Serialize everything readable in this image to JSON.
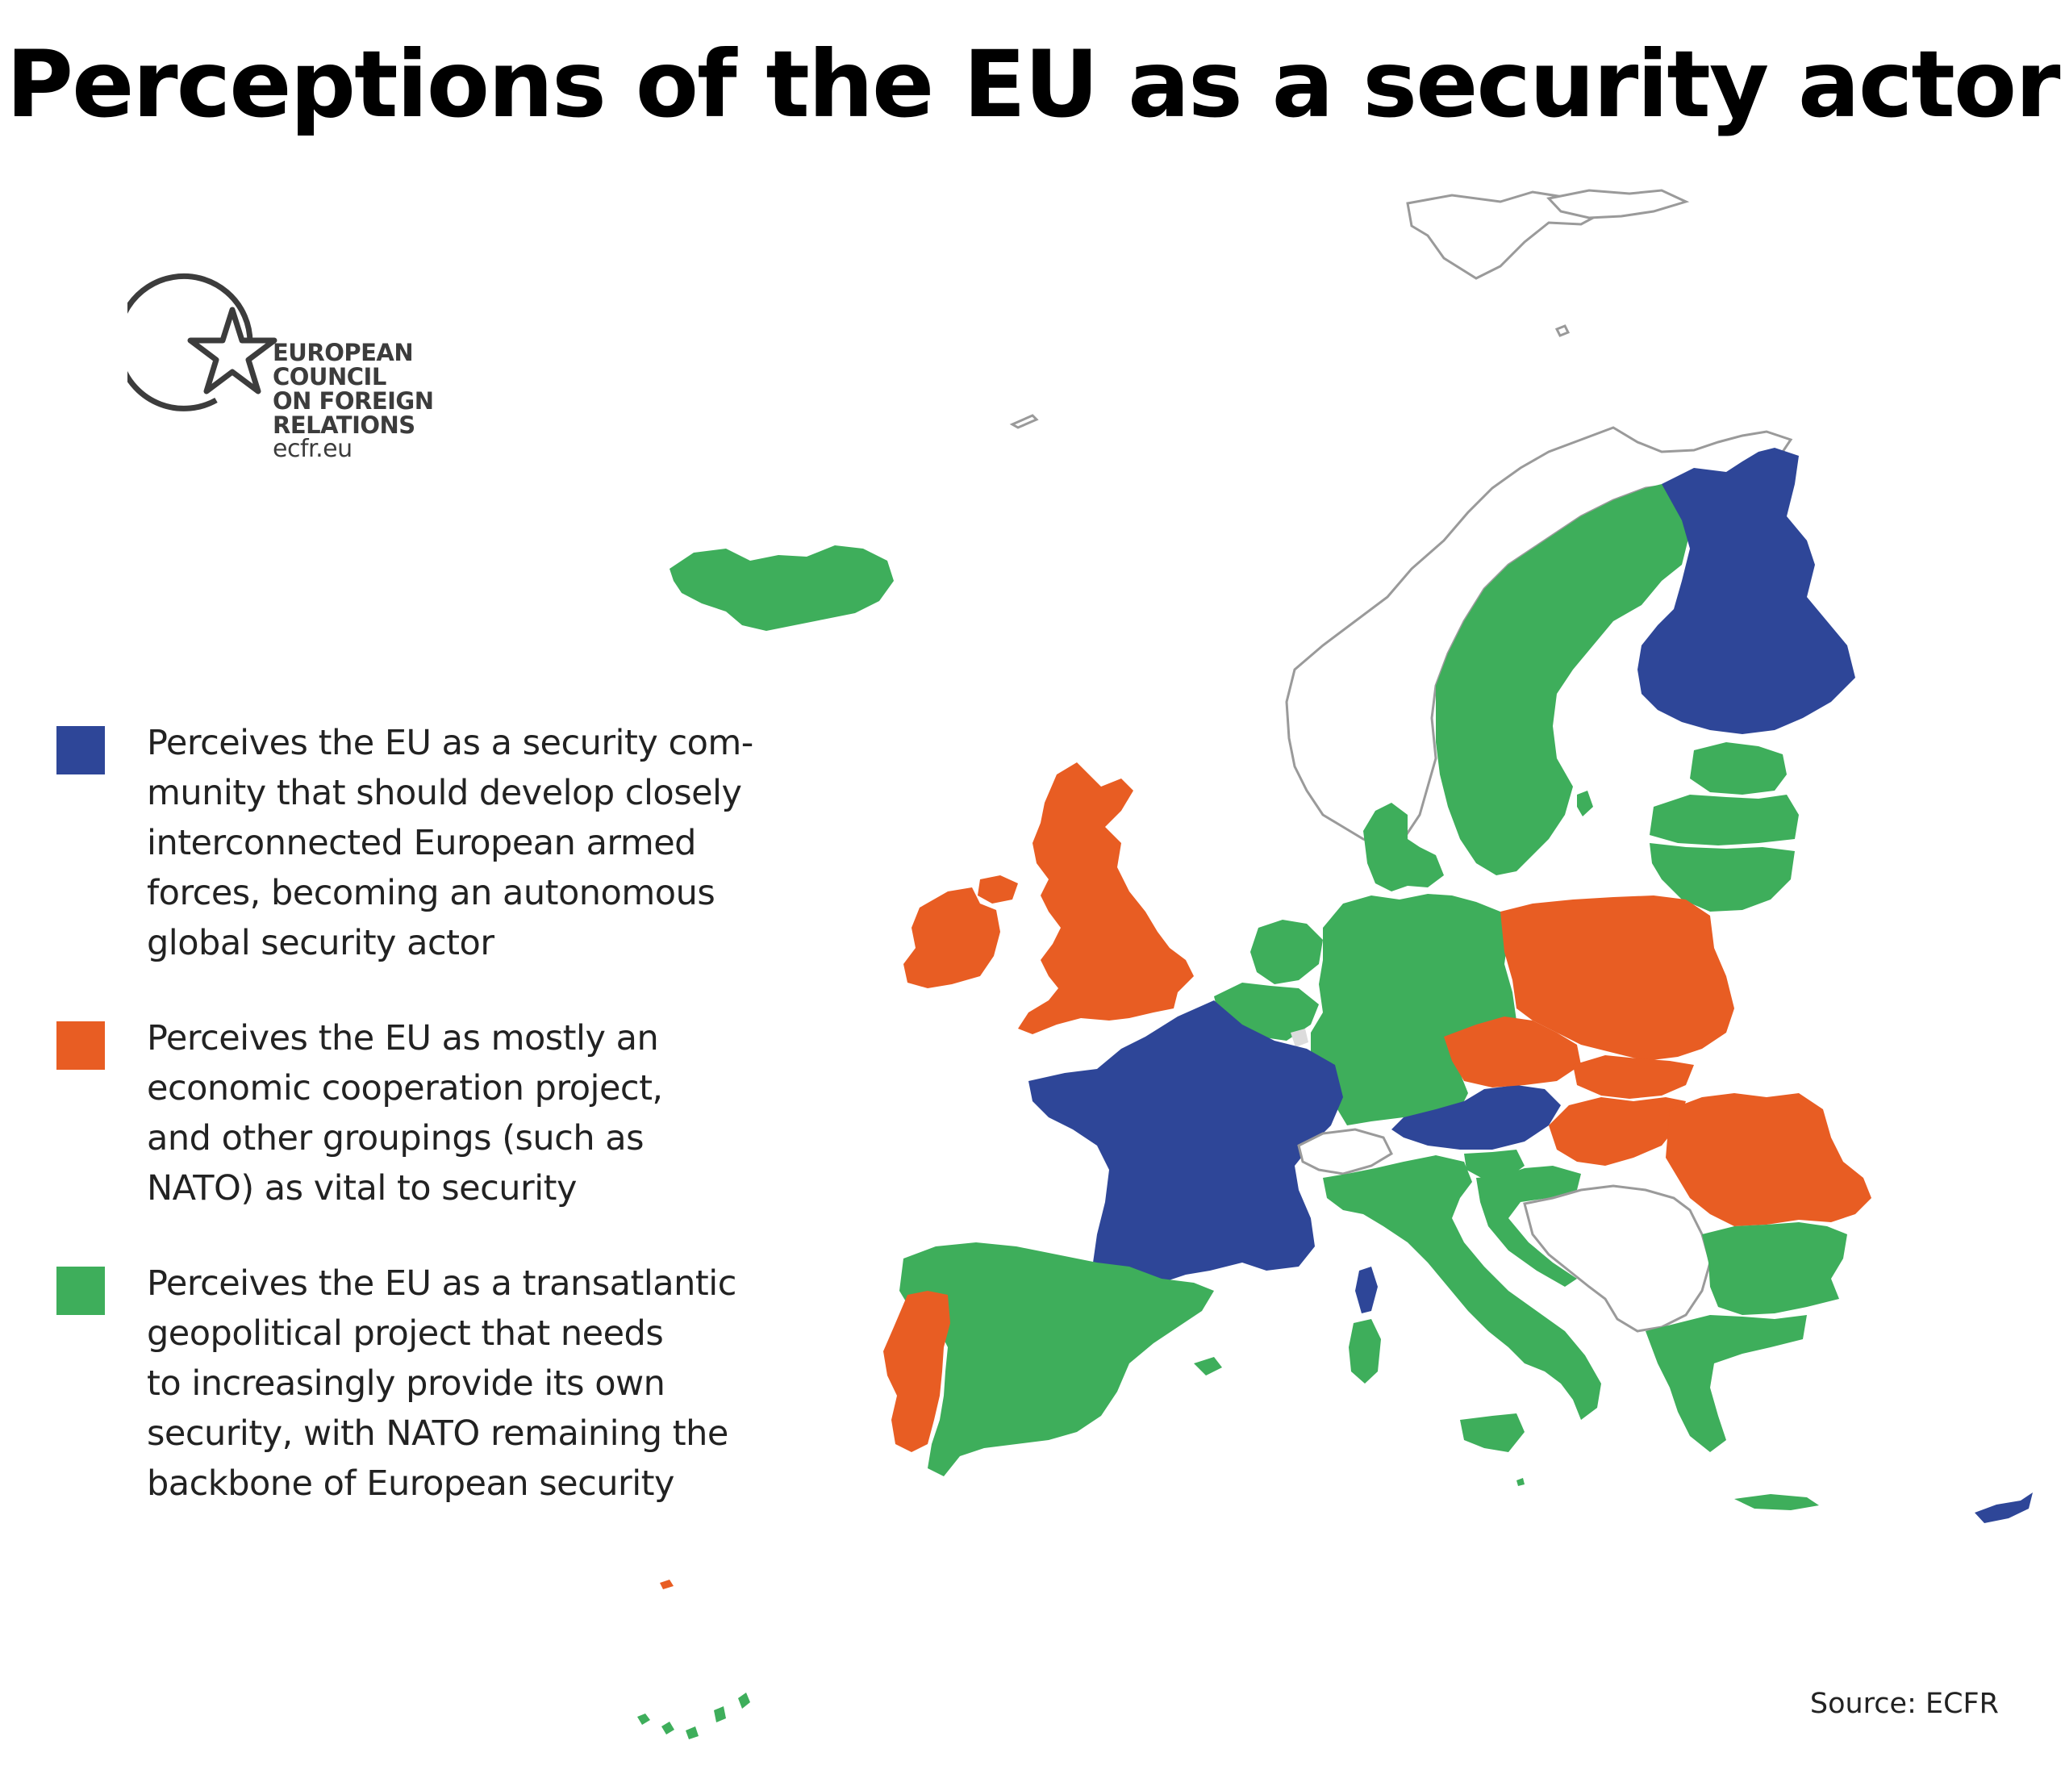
{
  "title": "Perceptions of the EU as a security actor",
  "logo": {
    "line1": "EUROPEAN",
    "line2": "COUNCIL",
    "line3": "ON FOREIGN",
    "line4": "RELATIONS",
    "url": "ecfr.eu"
  },
  "colors": {
    "blue": "#2e4698",
    "orange": "#e85d23",
    "green": "#3eae5b",
    "no_data_outline": "#9a9a9a"
  },
  "legend": [
    {
      "color": "blue",
      "text": "Perceives the EU as a security com-\nmunity that should develop closely\ninterconnected European armed\nforces, becoming an autonomous\nglobal security actor"
    },
    {
      "color": "orange",
      "text": "Perceives the EU as mostly an\neconomic cooperation project,\nand other groupings (such as\nNATO) as vital to security"
    },
    {
      "color": "green",
      "text": "Perceives the EU as a transatlantic\ngeopolitical project that needs\nto increasingly provide its own\nsecurity, with NATO remaining the\nbackbone of European security"
    }
  ],
  "source": "Source: ECFR"
}
